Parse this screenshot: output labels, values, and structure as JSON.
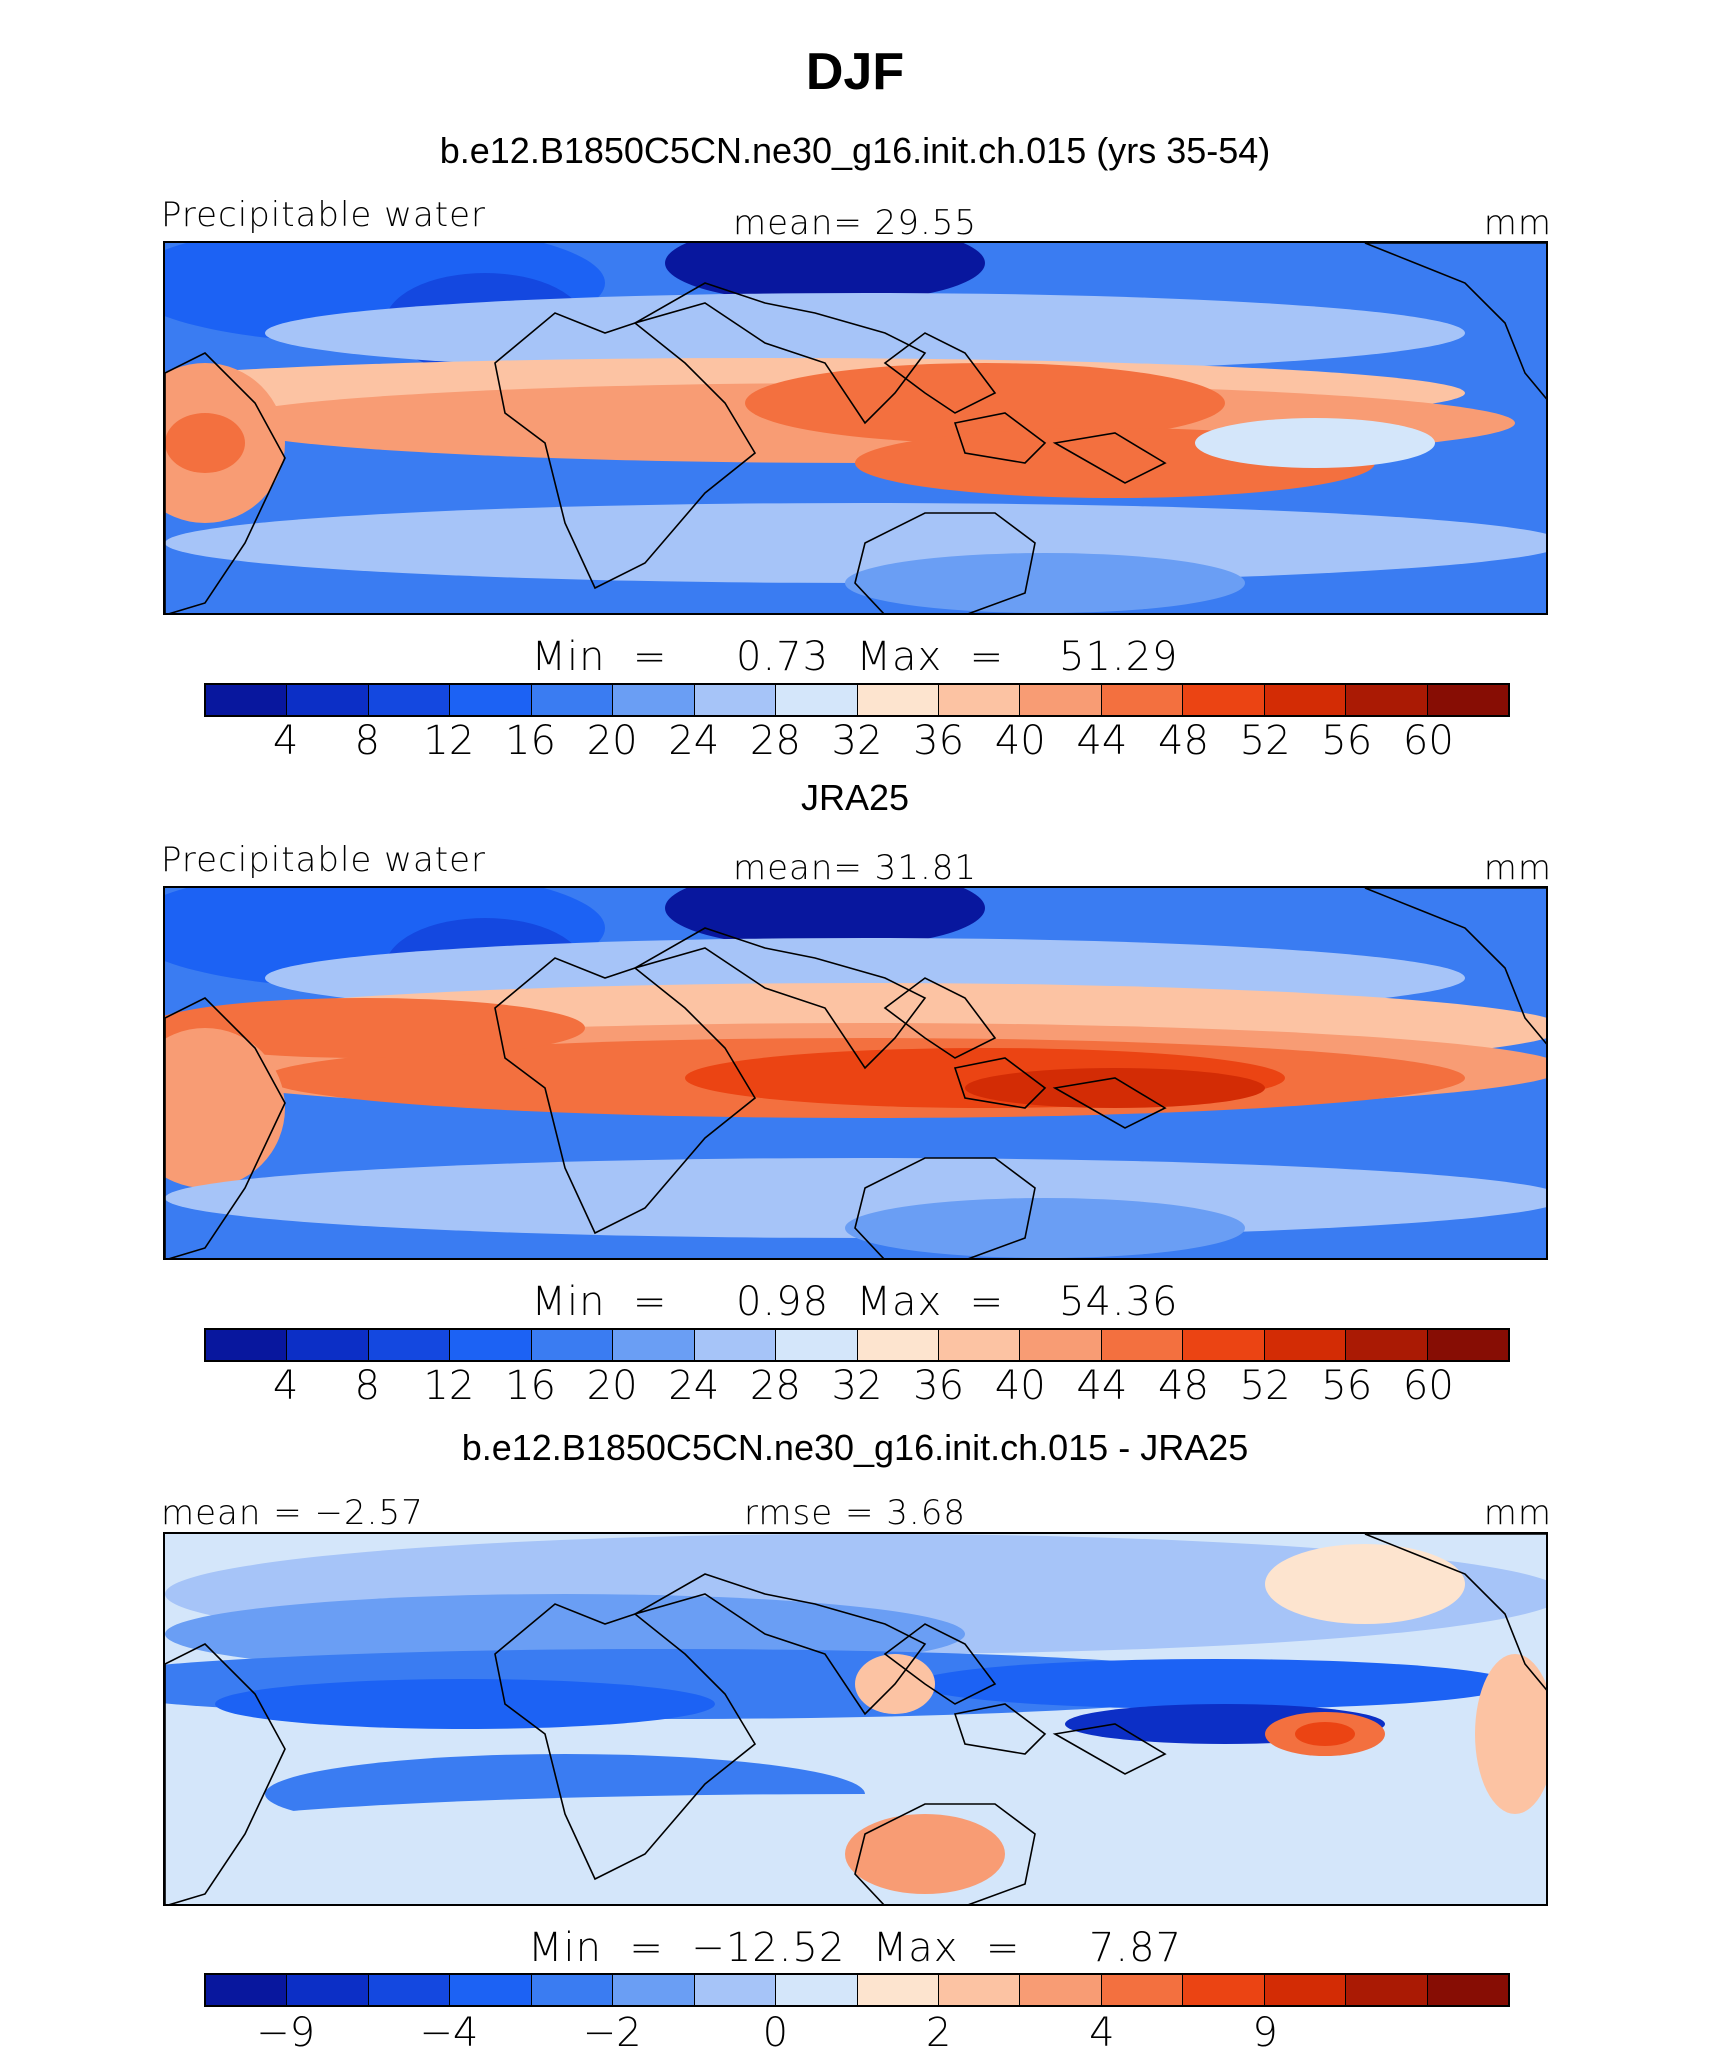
{
  "title": "DJF",
  "units": "mm",
  "colorbar_colors": [
    "#08179e",
    "#0c2fc6",
    "#1448e0",
    "#1c62f4",
    "#3a7cf2",
    "#6a9ef4",
    "#a6c4f8",
    "#d4e6fa",
    "#fde4cf",
    "#fcc3a3",
    "#f89c74",
    "#f3703f",
    "#eb4413",
    "#d32c05",
    "#aa1a04",
    "#870d04"
  ],
  "panels": [
    {
      "title": "b.e12.B1850C5CN.ne30_g16.init.ch.015 (yrs 35-54)",
      "left_label": "Precipitable water",
      "center_label": "mean=   29.55",
      "right_label": "mm",
      "minmax": "Min  =     0.73  Max  =    51.29",
      "ticks": [
        "4",
        "8",
        "12",
        "16",
        "20",
        "24",
        "28",
        "32",
        "36",
        "40",
        "44",
        "48",
        "52",
        "56",
        "60"
      ],
      "contours": [
        0.73,
        4,
        8,
        12,
        16,
        20,
        24,
        28,
        32,
        36,
        40,
        44,
        48,
        51.29
      ],
      "stats": {
        "mean": 29.55,
        "min": 0.73,
        "max": 51.29
      }
    },
    {
      "title": "JRA25",
      "left_label": "Precipitable water",
      "center_label": "mean=   31.81",
      "right_label": "mm",
      "minmax": "Min  =     0.98  Max  =    54.36",
      "ticks": [
        "4",
        "8",
        "12",
        "16",
        "20",
        "24",
        "28",
        "32",
        "36",
        "40",
        "44",
        "48",
        "52",
        "56",
        "60"
      ],
      "contours": [
        0.98,
        4,
        8,
        12,
        16,
        20,
        24,
        28,
        32,
        36,
        40,
        44,
        48,
        52,
        54.36
      ],
      "stats": {
        "mean": 31.81,
        "min": 0.98,
        "max": 54.36
      }
    },
    {
      "title": "b.e12.B1850C5CN.ne30_g16.init.ch.015 - JRA25",
      "left_label": "mean  =   −2.57",
      "center_label": "rmse  =     3.68",
      "right_label": "mm",
      "minmax": "Min  =  −12.52  Max  =     7.87",
      "ticks": [
        "−9",
        "",
        "−4",
        "",
        "−2",
        "",
        "0",
        "",
        "2",
        "",
        "4",
        "",
        "9",
        "",
        ""
      ],
      "contours": [
        -12.52,
        -9,
        -4,
        -2,
        0,
        2,
        4,
        7.87
      ],
      "stats": {
        "mean": -2.57,
        "rmse": 3.68,
        "min": -12.52,
        "max": 7.87
      }
    }
  ]
}
